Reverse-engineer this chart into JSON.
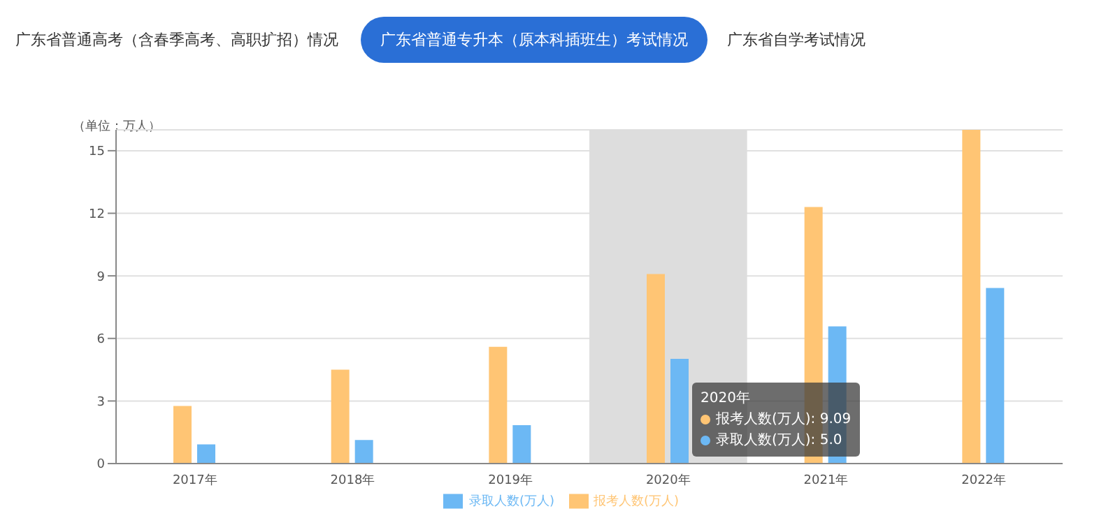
{
  "chart_data": {
    "type": "bar",
    "ylabel": "（单位：万人）",
    "categories": [
      "2017年",
      "2018年",
      "2019年",
      "2020年",
      "2021年",
      "2022年"
    ],
    "series": [
      {
        "name": "报考人数(万人)",
        "color": "#ffc574",
        "values": [
          2.76,
          4.5,
          5.6,
          9.09,
          12.3,
          16.0
        ]
      },
      {
        "name": "录取人数(万人)",
        "color": "#6cb8f4",
        "values": [
          0.92,
          1.13,
          1.84,
          5.02,
          6.58,
          8.42
        ]
      }
    ],
    "ylim": [
      0,
      16
    ],
    "yticks": [
      0,
      3,
      6,
      9,
      12,
      15
    ],
    "grid": "y",
    "legend": "bottom",
    "bands": [
      {
        "axis": "x",
        "from": "2020年",
        "to": "2020年",
        "color": "#dddddd"
      }
    ],
    "annotations": [
      "广东省普通高考（含春季高考、高职扩招）情况",
      "广东省普通专升本（原本科插班生）考试情况",
      "广东省自学考试情况",
      "2020年",
      "报考人数(万人): 9.09",
      "录取人数(万人): 5.0"
    ]
  }
}
